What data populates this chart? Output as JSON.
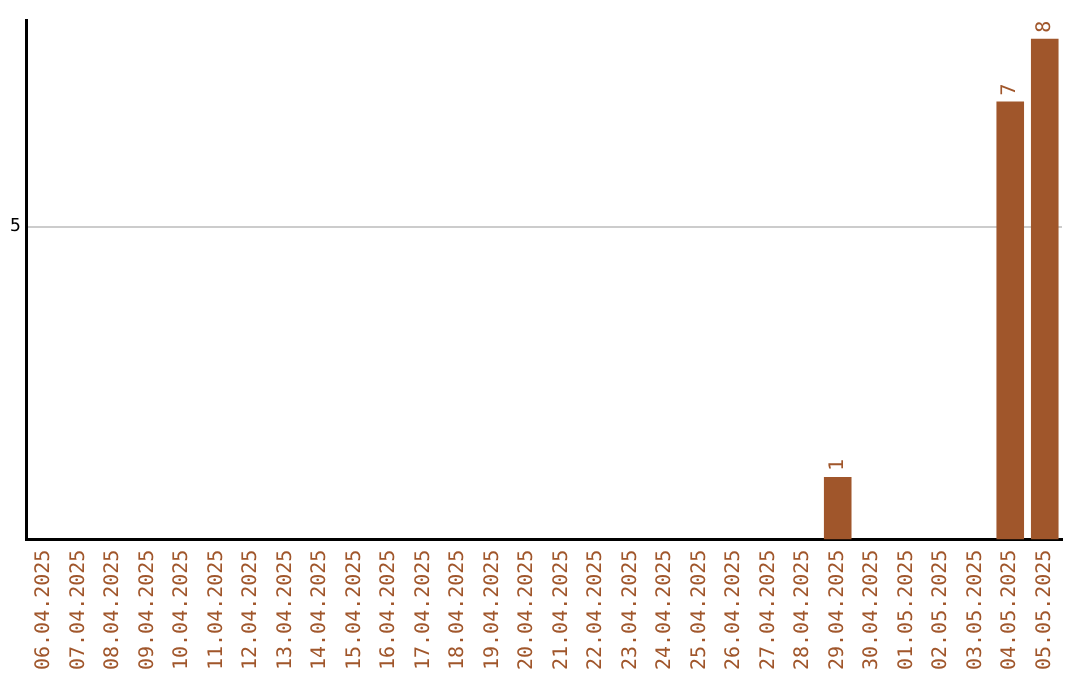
{
  "chart_data": {
    "type": "bar",
    "categories": [
      "06.04.2025",
      "07.04.2025",
      "08.04.2025",
      "09.04.2025",
      "10.04.2025",
      "11.04.2025",
      "12.04.2025",
      "13.04.2025",
      "14.04.2025",
      "15.04.2025",
      "16.04.2025",
      "17.04.2025",
      "18.04.2025",
      "19.04.2025",
      "20.04.2025",
      "21.04.2025",
      "22.04.2025",
      "23.04.2025",
      "24.04.2025",
      "25.04.2025",
      "26.04.2025",
      "27.04.2025",
      "28.04.2025",
      "29.04.2025",
      "30.04.2025",
      "01.05.2025",
      "02.05.2025",
      "03.05.2025",
      "04.05.2025",
      "05.05.2025"
    ],
    "values": [
      null,
      null,
      null,
      null,
      null,
      null,
      null,
      null,
      null,
      null,
      null,
      null,
      null,
      null,
      null,
      null,
      null,
      null,
      null,
      null,
      null,
      null,
      null,
      1,
      null,
      null,
      null,
      null,
      7,
      8
    ],
    "data_labels": true,
    "color": "#a0562b",
    "ylim": [
      0,
      8.3
    ],
    "yticks": [
      5
    ],
    "grid": "y",
    "legend": false
  }
}
